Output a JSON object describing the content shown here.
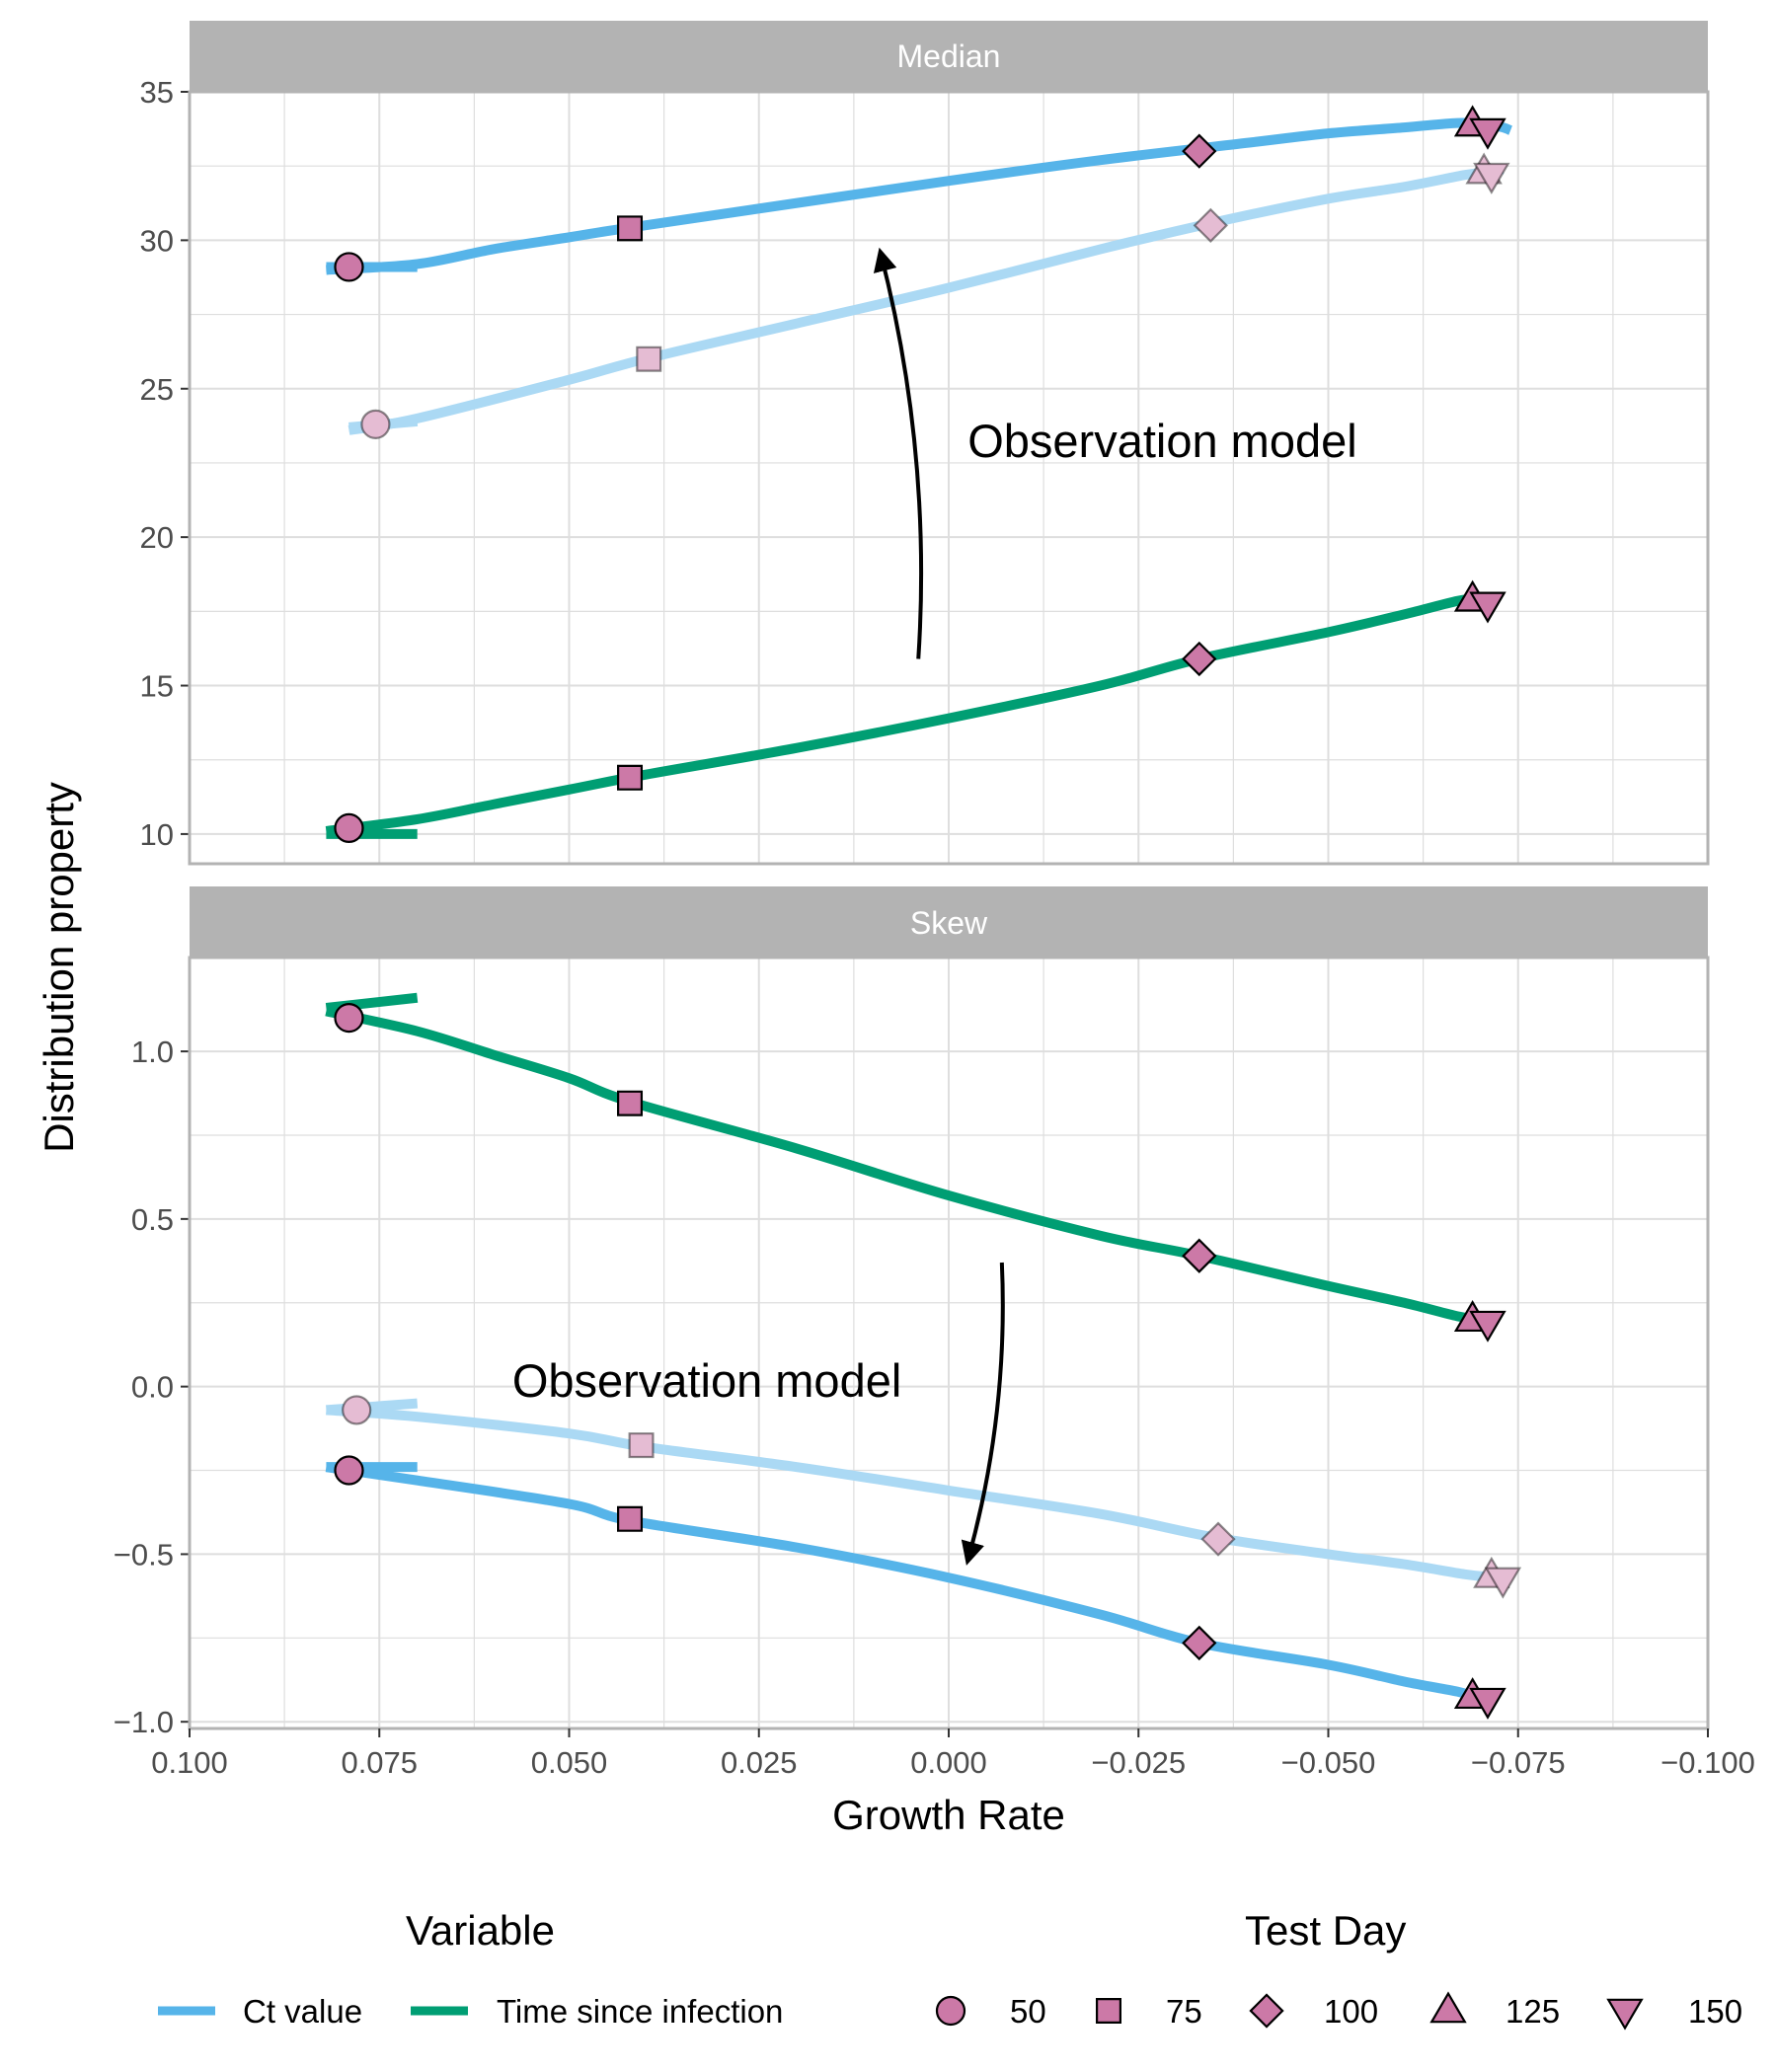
{
  "chart_data": {
    "type": "line",
    "xlabel": "Growth Rate",
    "ylabel": "Distribution property",
    "x_axis": {
      "reversed": true,
      "range": [
        0.1,
        -0.1
      ],
      "ticks": [
        0.1,
        0.075,
        0.05,
        0.025,
        0.0,
        -0.025,
        -0.05,
        -0.075,
        -0.1
      ],
      "tick_labels": [
        "0.100",
        "0.075",
        "0.050",
        "0.025",
        "0.000",
        "−0.025",
        "−0.050",
        "−0.075",
        "−0.100"
      ]
    },
    "grid": true,
    "legend_position": "bottom",
    "legend": {
      "variable_title": "Variable",
      "variables": [
        {
          "label": "Ct value",
          "color": "#56B4E9"
        },
        {
          "label": "Time since infection",
          "color": "#009E73"
        }
      ],
      "test_day_title": "Test Day",
      "test_days": [
        {
          "label": "50",
          "shape": "circle"
        },
        {
          "label": "75",
          "shape": "square"
        },
        {
          "label": "100",
          "shape": "diamond"
        },
        {
          "label": "125",
          "shape": "triangle-up"
        },
        {
          "label": "150",
          "shape": "triangle-down"
        }
      ]
    },
    "colors": {
      "ct": "#56B4E9",
      "ct_faded": "#ABD9F4",
      "tsi": "#009E73",
      "marker": "#CC79A7",
      "marker_faded": "#E5BCD3",
      "strip_bg": "#B3B3B3",
      "panel_border": "#B3B3B3",
      "grid": "#DEDEDE"
    },
    "panels": [
      {
        "title": "Median",
        "ylim": [
          9.0,
          35.0
        ],
        "yticks": [
          10,
          15,
          20,
          25,
          30,
          35
        ],
        "ytick_labels": [
          "10",
          "15",
          "20",
          "25",
          "30",
          "35"
        ],
        "annotation": {
          "text": "Observation model",
          "x": -0.0025,
          "y": 22.7
        },
        "arrow": {
          "from": [
            0.004,
            15.9
          ],
          "to": [
            0.009,
            29.6
          ],
          "bend": "left"
        },
        "series": [
          {
            "name": "Ct value",
            "color_key": "ct",
            "x": [
              0.082,
              0.07,
              0.06,
              0.05,
              0.04,
              0.0,
              -0.02,
              -0.04,
              -0.05,
              -0.06,
              -0.067,
              -0.071,
              -0.073,
              -0.074
            ],
            "y": [
              29.0,
              29.2,
              29.7,
              30.1,
              30.5,
              32.0,
              32.7,
              33.3,
              33.6,
              33.8,
              33.95,
              33.9,
              33.8,
              33.7
            ],
            "tail": {
              "x": [
                0.082,
                0.07
              ],
              "y": [
                29.1,
                29.1
              ]
            },
            "markers": [
              {
                "day": 50,
                "x": 0.079,
                "y": 29.1,
                "shape": "circle"
              },
              {
                "day": 75,
                "x": 0.042,
                "y": 30.4,
                "shape": "square"
              },
              {
                "day": 100,
                "x": -0.033,
                "y": 33.0,
                "shape": "diamond"
              },
              {
                "day": 125,
                "x": -0.069,
                "y": 33.9,
                "shape": "triangle-up"
              },
              {
                "day": 150,
                "x": -0.071,
                "y": 33.7,
                "shape": "triangle-down"
              }
            ]
          },
          {
            "name": "Ct value (Ct threshold)",
            "color_key": "ct_faded",
            "faded": true,
            "x": [
              0.079,
              0.07,
              0.05,
              0.04,
              0.02,
              0.0,
              -0.02,
              -0.035,
              -0.05,
              -0.06,
              -0.068,
              -0.071,
              -0.073
            ],
            "y": [
              23.6,
              24.0,
              25.3,
              26.0,
              27.2,
              28.4,
              29.7,
              30.6,
              31.4,
              31.8,
              32.2,
              32.3,
              32.4
            ],
            "tail": {
              "x": [
                0.079,
                0.07
              ],
              "y": [
                23.7,
                23.9
              ]
            },
            "markers": [
              {
                "day": 50,
                "x": 0.0755,
                "y": 23.8,
                "shape": "circle"
              },
              {
                "day": 75,
                "x": 0.0395,
                "y": 26.0,
                "shape": "square"
              },
              {
                "day": 100,
                "x": -0.0345,
                "y": 30.5,
                "shape": "diamond"
              },
              {
                "day": 125,
                "x": -0.0705,
                "y": 32.3,
                "shape": "triangle-up"
              },
              {
                "day": 150,
                "x": -0.0715,
                "y": 32.2,
                "shape": "triangle-down"
              }
            ]
          },
          {
            "name": "Time since infection",
            "color_key": "tsi",
            "x": [
              0.082,
              0.07,
              0.06,
              0.05,
              0.04,
              0.02,
              0.0,
              -0.02,
              -0.033,
              -0.05,
              -0.06,
              -0.067,
              -0.07,
              -0.072
            ],
            "y": [
              10.1,
              10.5,
              11.0,
              11.5,
              12.0,
              12.9,
              13.9,
              15.0,
              15.9,
              16.8,
              17.4,
              17.85,
              17.95,
              17.9
            ],
            "tail": {
              "x": [
                0.082,
                0.07
              ],
              "y": [
                10.0,
                10.0
              ]
            },
            "markers": [
              {
                "day": 50,
                "x": 0.079,
                "y": 10.2,
                "shape": "circle"
              },
              {
                "day": 75,
                "x": 0.042,
                "y": 11.9,
                "shape": "square"
              },
              {
                "day": 100,
                "x": -0.033,
                "y": 15.9,
                "shape": "diamond"
              },
              {
                "day": 125,
                "x": -0.069,
                "y": 17.9,
                "shape": "triangle-up"
              },
              {
                "day": 150,
                "x": -0.071,
                "y": 17.75,
                "shape": "triangle-down"
              }
            ]
          }
        ]
      },
      {
        "title": "Skew",
        "ylim": [
          -1.02,
          1.28
        ],
        "yticks": [
          -1.0,
          -0.5,
          0.0,
          0.5,
          1.0
        ],
        "ytick_labels": [
          "−1.0",
          "−0.5",
          "0.0",
          "0.5",
          "1.0"
        ],
        "annotation": {
          "text": "Observation model",
          "x": 0.0575,
          "y": -0.03
        },
        "arrow": {
          "from": [
            -0.007,
            0.37
          ],
          "to": [
            -0.0025,
            -0.52
          ],
          "bend": "right"
        },
        "series": [
          {
            "name": "Time since infection",
            "color_key": "tsi",
            "x": [
              0.082,
              0.07,
              0.06,
              0.05,
              0.042,
              0.02,
              0.0,
              -0.02,
              -0.033,
              -0.05,
              -0.06,
              -0.067,
              -0.07,
              -0.072
            ],
            "y": [
              1.12,
              1.06,
              0.99,
              0.92,
              0.85,
              0.71,
              0.57,
              0.45,
              0.39,
              0.3,
              0.25,
              0.21,
              0.2,
              0.19
            ],
            "tail": {
              "x": [
                0.082,
                0.07
              ],
              "y": [
                1.13,
                1.16
              ]
            },
            "markers": [
              {
                "day": 50,
                "x": 0.079,
                "y": 1.1,
                "shape": "circle"
              },
              {
                "day": 75,
                "x": 0.042,
                "y": 0.845,
                "shape": "square"
              },
              {
                "day": 100,
                "x": -0.033,
                "y": 0.39,
                "shape": "diamond"
              },
              {
                "day": 125,
                "x": -0.069,
                "y": 0.2,
                "shape": "triangle-up"
              },
              {
                "day": 150,
                "x": -0.071,
                "y": 0.19,
                "shape": "triangle-down"
              }
            ]
          },
          {
            "name": "Ct value (Ct threshold)",
            "color_key": "ct_faded",
            "faded": true,
            "x": [
              0.082,
              0.07,
              0.05,
              0.04,
              0.02,
              0.0,
              -0.02,
              -0.035,
              -0.05,
              -0.06,
              -0.068,
              -0.072,
              -0.074
            ],
            "y": [
              -0.07,
              -0.09,
              -0.14,
              -0.18,
              -0.24,
              -0.31,
              -0.38,
              -0.45,
              -0.5,
              -0.53,
              -0.56,
              -0.57,
              -0.58
            ],
            "tail": {
              "x": [
                0.082,
                0.07
              ],
              "y": [
                -0.07,
                -0.05
              ]
            },
            "markers": [
              {
                "day": 50,
                "x": 0.078,
                "y": -0.07,
                "shape": "circle"
              },
              {
                "day": 75,
                "x": 0.0405,
                "y": -0.175,
                "shape": "square"
              },
              {
                "day": 100,
                "x": -0.0355,
                "y": -0.455,
                "shape": "diamond"
              },
              {
                "day": 125,
                "x": -0.0715,
                "y": -0.565,
                "shape": "triangle-up"
              },
              {
                "day": 150,
                "x": -0.073,
                "y": -0.575,
                "shape": "triangle-down"
              }
            ]
          },
          {
            "name": "Ct value",
            "color_key": "ct",
            "x": [
              0.082,
              0.07,
              0.05,
              0.042,
              0.02,
              0.0,
              -0.02,
              -0.033,
              -0.05,
              -0.06,
              -0.067,
              -0.07,
              -0.072
            ],
            "y": [
              -0.24,
              -0.28,
              -0.35,
              -0.4,
              -0.48,
              -0.57,
              -0.68,
              -0.765,
              -0.83,
              -0.88,
              -0.91,
              -0.93,
              -0.94
            ],
            "tail": {
              "x": [
                0.082,
                0.07
              ],
              "y": [
                -0.24,
                -0.24
              ]
            },
            "markers": [
              {
                "day": 50,
                "x": 0.079,
                "y": -0.25,
                "shape": "circle"
              },
              {
                "day": 75,
                "x": 0.042,
                "y": -0.395,
                "shape": "square"
              },
              {
                "day": 100,
                "x": -0.033,
                "y": -0.765,
                "shape": "diamond"
              },
              {
                "day": 125,
                "x": -0.069,
                "y": -0.925,
                "shape": "triangle-up"
              },
              {
                "day": 150,
                "x": -0.071,
                "y": -0.935,
                "shape": "triangle-down"
              }
            ]
          }
        ]
      }
    ]
  }
}
